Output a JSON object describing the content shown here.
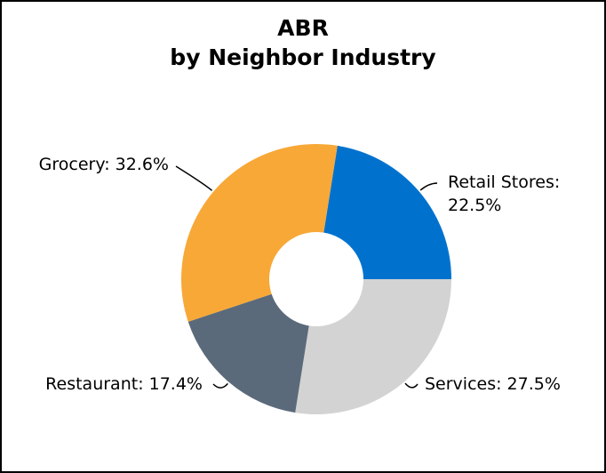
{
  "chart_data": {
    "type": "donut",
    "title": "ABR",
    "subtitle": "by Neighbor Industry",
    "values": [
      22.5,
      27.5,
      17.4,
      32.6
    ],
    "value_labels": [
      "Retail Stores: 22.5%",
      "Services: 27.5%",
      "Restaurant: 17.4%",
      "Grocery: 32.6%"
    ],
    "colors": [
      "#0072ce",
      "#d3d3d3",
      "#5b6a7a",
      "#f7a837"
    ]
  }
}
